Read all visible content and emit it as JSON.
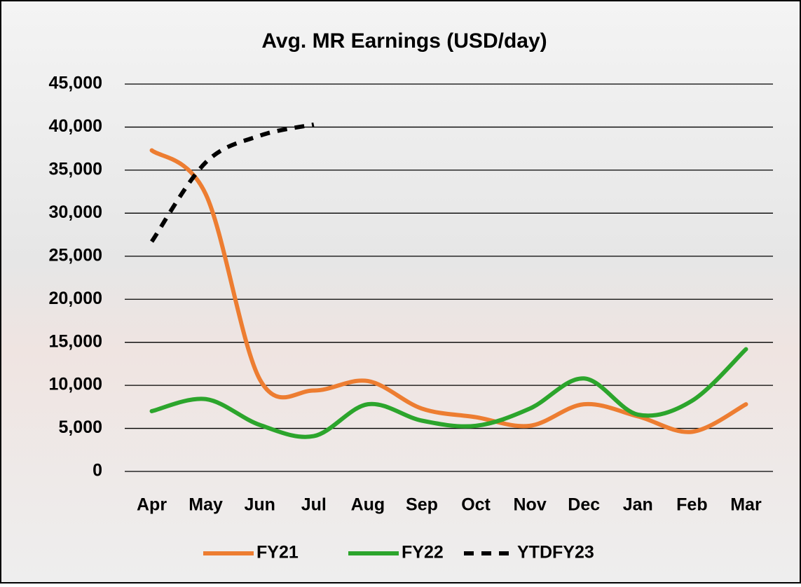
{
  "chart_data": {
    "type": "line",
    "title": "Avg. MR Earnings (USD/day)",
    "categories": [
      "Apr",
      "May",
      "Jun",
      "Jul",
      "Aug",
      "Sep",
      "Oct",
      "Nov",
      "Dec",
      "Jan",
      "Feb",
      "Mar"
    ],
    "series": [
      {
        "name": "FY21",
        "color": "#ed7d31",
        "dashed": false,
        "values": [
          37300,
          32200,
          10700,
          9400,
          10500,
          7300,
          6300,
          5300,
          7800,
          6400,
          4600,
          7800
        ]
      },
      {
        "name": "FY22",
        "color": "#2ca52c",
        "dashed": false,
        "values": [
          7000,
          8400,
          5400,
          4100,
          7800,
          5900,
          5300,
          7300,
          10800,
          6600,
          8200,
          14200
        ]
      },
      {
        "name": "YTDFY23",
        "color": "#000000",
        "dashed": true,
        "values": [
          26700,
          35900,
          39000,
          40300,
          null,
          null,
          null,
          null,
          null,
          null,
          null,
          null
        ]
      }
    ],
    "ylim": [
      0,
      45000
    ],
    "yticks": [
      0,
      {
        "value": 5000,
        "label": "5,000"
      },
      {
        "value": 10000,
        "label": "10,000"
      },
      {
        "value": 15000,
        "label": "15,000"
      },
      {
        "value": 20000,
        "label": "20,000"
      },
      {
        "value": 25000,
        "label": "25,000"
      },
      {
        "value": 30000,
        "label": "30,000"
      },
      {
        "value": 35000,
        "label": "35,000"
      },
      {
        "value": 40000,
        "label": "40,000"
      },
      {
        "value": 45000,
        "label": "45,000"
      }
    ],
    "grid": true,
    "legend": "bottom"
  }
}
